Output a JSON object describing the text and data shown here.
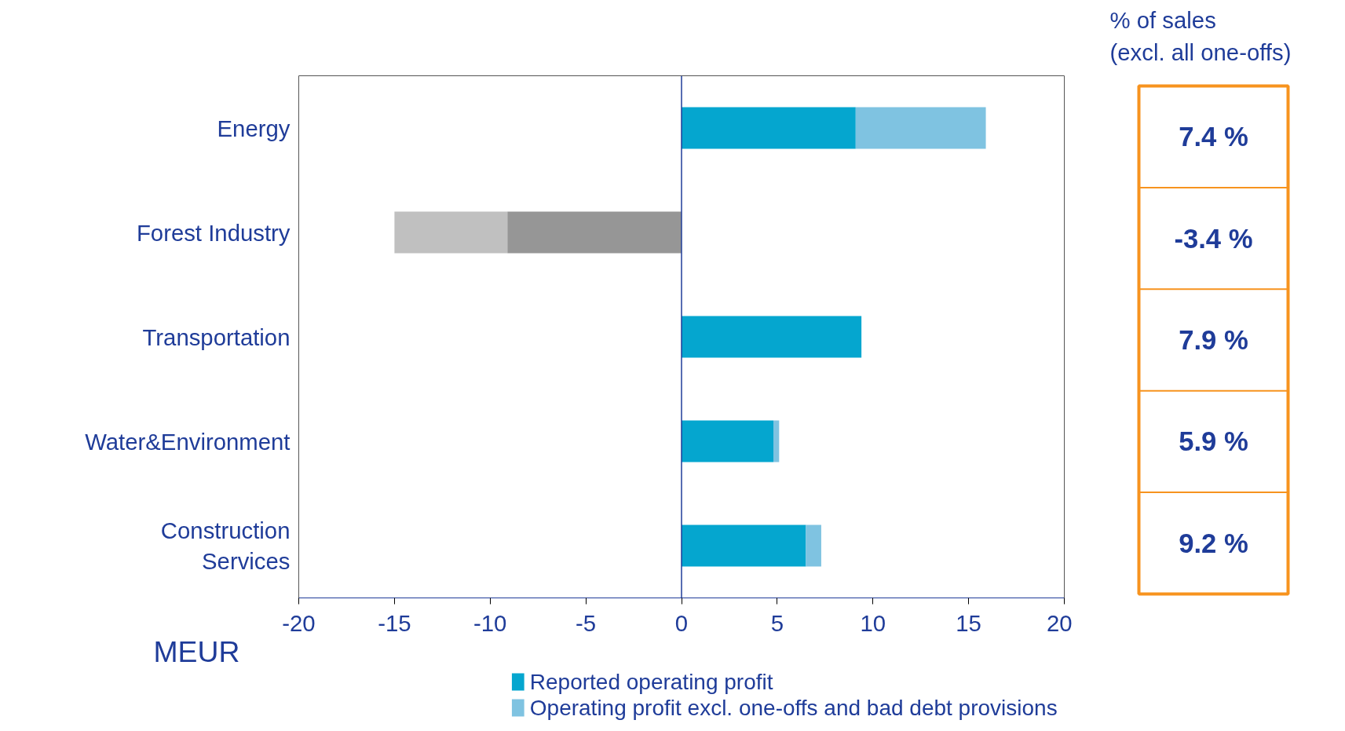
{
  "chart_data": [
    {
      "type": "bar",
      "orientation": "horizontal",
      "stacked": true,
      "categories": [
        "Energy",
        "Forest Industry",
        "Transportation",
        "Water&Environment",
        "Construction\nServices"
      ],
      "series": [
        {
          "name": "Reported operating profit",
          "color": "#05a6cf",
          "colors": [
            "#05a6cf",
            "#969696",
            "#05a6cf",
            "#05a6cf",
            "#05a6cf"
          ],
          "values": [
            9.1,
            -9.1,
            9.4,
            4.8,
            6.5
          ]
        },
        {
          "name": "Operating profit excl. one-offs and bad debt provisions",
          "color": "#7fc3e1",
          "colors": [
            "#7fc3e1",
            "#c0c0c0",
            "#7fc3e1",
            "#7fc3e1",
            "#7fc3e1"
          ],
          "values": [
            6.8,
            -5.9,
            0,
            0.3,
            0.8
          ]
        }
      ],
      "ref_lines": [
        {
          "axis": "x",
          "value": 0,
          "color": "#1f3c99"
        }
      ],
      "xlabel": "MEUR",
      "xlim": [
        -20,
        20
      ],
      "xticks": [
        -20,
        -15,
        -10,
        -5,
        0,
        5,
        10,
        15,
        20
      ],
      "grid": false,
      "legend": "bottom"
    },
    {
      "type": "other",
      "title": "% of sales\n(excl. all one-offs)",
      "annotations": [
        "7.4 %",
        "-3.4 %",
        "7.9 %",
        "5.9 %",
        "9.2 %"
      ]
    }
  ]
}
